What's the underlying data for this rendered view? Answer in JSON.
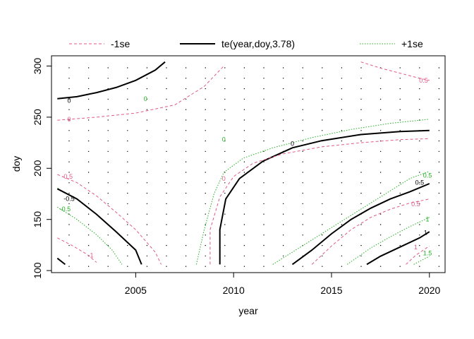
{
  "chart_data": {
    "type": "contour",
    "xlabel": "year",
    "ylabel": "doy",
    "xlim": [
      2000.7,
      2020.8
    ],
    "ylim": [
      98,
      310
    ],
    "x_ticks": [
      2005,
      2010,
      2015,
      2020
    ],
    "y_ticks": [
      100,
      150,
      200,
      250,
      300
    ],
    "legend": {
      "position": "top",
      "entries": [
        {
          "label": "-1se",
          "style": "dashed",
          "color": "#E05A8A"
        },
        {
          "label": "te(year,doy,3.78)",
          "style": "solid",
          "color": "#000000"
        },
        {
          "label": "+1se",
          "style": "dotted",
          "color": "#22B022"
        }
      ]
    },
    "series": [
      {
        "group": "te",
        "level": "0",
        "label": "0",
        "label_at": [
          2001.6,
          266
        ],
        "points": [
          [
            2001,
            268
          ],
          [
            2002,
            270
          ],
          [
            2003,
            274
          ],
          [
            2004,
            279
          ],
          [
            2005,
            286
          ],
          [
            2006,
            296
          ],
          [
            2006.5,
            304
          ]
        ]
      },
      {
        "group": "te",
        "level": "0",
        "label": "0",
        "label_at": [
          2013,
          224
        ],
        "points": [
          [
            2009.3,
            106
          ],
          [
            2009.3,
            140
          ],
          [
            2009.6,
            170
          ],
          [
            2010.3,
            190
          ],
          [
            2011.5,
            207
          ],
          [
            2013,
            220
          ],
          [
            2014.5,
            227
          ],
          [
            2016.5,
            233
          ],
          [
            2018.5,
            236
          ],
          [
            2020,
            237
          ]
        ]
      },
      {
        "group": "te",
        "level": "-0.5",
        "label": "-0.5",
        "label_at": [
          2001.6,
          170
        ],
        "points": [
          [
            2001,
            180
          ],
          [
            2002,
            170
          ],
          [
            2003,
            155
          ],
          [
            2004,
            138
          ],
          [
            2005,
            120
          ],
          [
            2005.3,
            106
          ]
        ]
      },
      {
        "group": "te",
        "level": "0.5",
        "label": "0.5",
        "label_at": [
          2019.5,
          186
        ],
        "points": [
          [
            2013,
            106
          ],
          [
            2014,
            120
          ],
          [
            2015,
            136
          ],
          [
            2016,
            150
          ],
          [
            2017,
            161
          ],
          [
            2018,
            170
          ],
          [
            2019,
            177
          ],
          [
            2020,
            185
          ]
        ]
      },
      {
        "group": "te",
        "level": "1",
        "label": "1",
        "label_at": [
          2019.8,
          137
        ],
        "points": [
          [
            2016.8,
            106
          ],
          [
            2017.5,
            114
          ],
          [
            2018.5,
            123
          ],
          [
            2019.5,
            132
          ],
          [
            2020,
            138
          ]
        ]
      },
      {
        "group": "te",
        "level": "-1",
        "label": "",
        "label_at": null,
        "points": [
          [
            2001,
            112
          ],
          [
            2001.4,
            106
          ]
        ]
      },
      {
        "group": "minus1se",
        "level": "0",
        "label": "0",
        "label_at": [
          2001.6,
          248
        ],
        "points": [
          [
            2001,
            247
          ],
          [
            2003,
            250
          ],
          [
            2005,
            254
          ],
          [
            2007,
            262
          ],
          [
            2008.5,
            280
          ],
          [
            2009.5,
            300
          ]
        ]
      },
      {
        "group": "minus1se",
        "level": "0",
        "label": "0",
        "label_at": [
          2009.5,
          190
        ],
        "points": [
          [
            2008.8,
            106
          ],
          [
            2008.8,
            140
          ],
          [
            2009.3,
            172
          ],
          [
            2010,
            192
          ],
          [
            2011,
            205
          ],
          [
            2012.5,
            214
          ],
          [
            2014.5,
            221
          ],
          [
            2016.5,
            225
          ],
          [
            2018.5,
            228
          ],
          [
            2020,
            229
          ]
        ]
      },
      {
        "group": "minus1se",
        "level": "-0.5",
        "label": "-0.5",
        "label_at": [
          2001.5,
          192
        ],
        "points": [
          [
            2001,
            194
          ],
          [
            2002,
            186
          ],
          [
            2003,
            173
          ],
          [
            2004,
            157
          ],
          [
            2005,
            140
          ],
          [
            2006,
            118
          ],
          [
            2006.3,
            106
          ]
        ]
      },
      {
        "group": "minus1se",
        "level": "-1",
        "label": "-1",
        "label_at": [
          2002.7,
          115
        ],
        "points": [
          [
            2001,
            132
          ],
          [
            2001.8,
            124
          ],
          [
            2002.5,
            116
          ],
          [
            2003,
            108
          ]
        ]
      },
      {
        "group": "minus1se",
        "level": "0.5",
        "label": "0.5",
        "label_at": [
          2019.7,
          286
        ],
        "points": [
          [
            2016.5,
            304
          ],
          [
            2017.5,
            298
          ],
          [
            2018.5,
            293
          ],
          [
            2019.5,
            288
          ],
          [
            2020,
            286
          ]
        ]
      },
      {
        "group": "minus1se",
        "level": "0.5",
        "label": "0.5",
        "label_at": [
          2019.3,
          165
        ],
        "points": [
          [
            2014,
            106
          ],
          [
            2015,
            124
          ],
          [
            2016,
            140
          ],
          [
            2017,
            152
          ],
          [
            2018,
            160
          ],
          [
            2019,
            166
          ],
          [
            2020,
            170
          ]
        ]
      },
      {
        "group": "minus1se",
        "level": "1",
        "label": "1",
        "label_at": [
          2019.3,
          123
        ],
        "points": [
          [
            2018.8,
            106
          ],
          [
            2019.3,
            115
          ],
          [
            2020,
            124
          ]
        ]
      },
      {
        "group": "plus1se",
        "level": "0",
        "label": "0",
        "label_at": [
          2005.5,
          268
        ],
        "points": [
          [
            2001,
            180.5
          ],
          [
            2001.1,
            180.5
          ]
        ]
      },
      {
        "group": "plus1se",
        "level": "0",
        "label": "0",
        "label_at": [
          2009.5,
          228
        ],
        "points": [
          [
            2008.1,
            106
          ],
          [
            2008.5,
            140
          ],
          [
            2009,
            175
          ],
          [
            2009.5,
            196
          ],
          [
            2010.5,
            210
          ],
          [
            2012,
            220
          ],
          [
            2014,
            230
          ],
          [
            2016,
            238
          ],
          [
            2018,
            244
          ],
          [
            2020,
            248
          ]
        ]
      },
      {
        "group": "plus1se",
        "level": "-0.5",
        "label": "-0.5",
        "label_at": [
          2001.4,
          160
        ],
        "points": [
          [
            2001,
            162
          ],
          [
            2002,
            150
          ],
          [
            2003,
            135
          ],
          [
            2003.8,
            120
          ],
          [
            2004.3,
            106
          ]
        ]
      },
      {
        "group": "plus1se",
        "level": "0.5",
        "label": "0.5",
        "label_at": [
          2019.9,
          193
        ],
        "points": [
          [
            2012,
            106
          ],
          [
            2013,
            118
          ],
          [
            2014,
            130
          ],
          [
            2015,
            142
          ],
          [
            2016,
            154
          ],
          [
            2017,
            166
          ],
          [
            2018,
            178
          ],
          [
            2019,
            190
          ],
          [
            2020,
            197
          ]
        ]
      },
      {
        "group": "plus1se",
        "level": "1",
        "label": "1",
        "label_at": [
          2019.9,
          150
        ],
        "points": [
          [
            2015.8,
            106
          ],
          [
            2017,
            122
          ],
          [
            2018,
            133
          ],
          [
            2019,
            143
          ],
          [
            2020,
            152
          ]
        ]
      },
      {
        "group": "plus1se",
        "level": "1.5",
        "label": "1.5",
        "label_at": [
          2019.9,
          117
        ],
        "points": [
          [
            2019.2,
            106
          ],
          [
            2020,
            114
          ]
        ]
      }
    ]
  }
}
